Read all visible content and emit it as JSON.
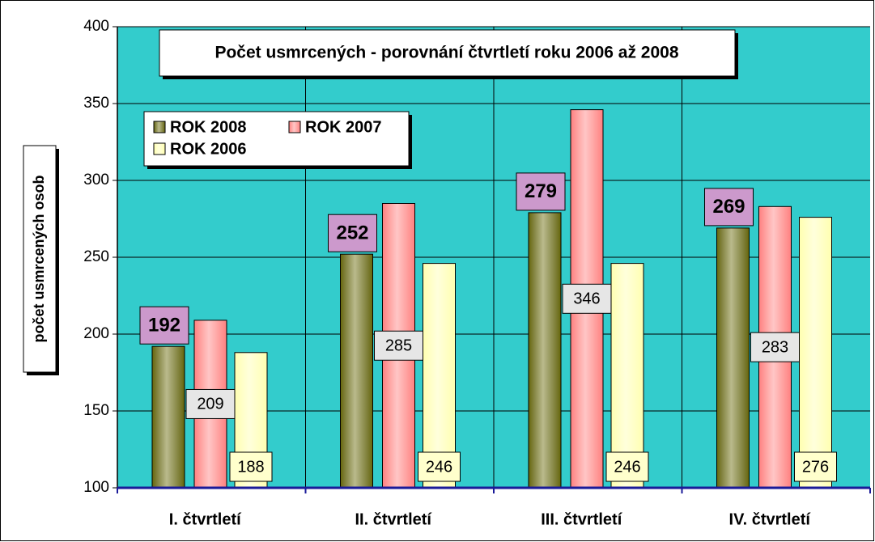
{
  "chart_data": {
    "type": "bar",
    "title": "Počet usmrcených - porovnání čtvrtletí roku 2006 až 2008",
    "y_label": "počet usmrcených osob",
    "categories": [
      "I. čtvrtletí",
      "II. čtvrtletí",
      "III. čtvrtletí",
      "IV. čtvrtletí"
    ],
    "series": [
      {
        "name": "ROK 2008",
        "color": "#666600",
        "values": [
          192,
          252,
          279,
          269
        ]
      },
      {
        "name": "ROK 2007",
        "color": "#ff8080",
        "values": [
          209,
          285,
          346,
          283
        ]
      },
      {
        "name": "ROK 2006",
        "color": "#ffffb0",
        "values": [
          188,
          246,
          246,
          276
        ]
      }
    ],
    "ylim": [
      100,
      400
    ],
    "yticks": [
      100,
      150,
      200,
      250,
      300,
      350,
      400
    ],
    "grid": true,
    "plot_background": "#33cccc"
  }
}
